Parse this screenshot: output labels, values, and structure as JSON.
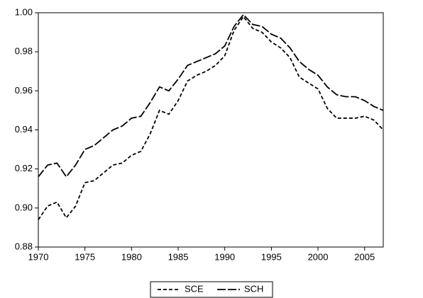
{
  "chart_data": {
    "type": "line",
    "x": [
      1970,
      1971,
      1972,
      1973,
      1974,
      1975,
      1976,
      1977,
      1978,
      1979,
      1980,
      1981,
      1982,
      1983,
      1984,
      1985,
      1986,
      1987,
      1988,
      1989,
      1990,
      1991,
      1992,
      1993,
      1994,
      1995,
      1996,
      1997,
      1998,
      1999,
      2000,
      2001,
      2002,
      2003,
      2004,
      2005,
      2006,
      2007
    ],
    "series": [
      {
        "name": "SCE",
        "color": "#000000",
        "dash": "short",
        "values": [
          0.894,
          0.901,
          0.903,
          0.895,
          0.901,
          0.913,
          0.914,
          0.918,
          0.922,
          0.923,
          0.927,
          0.929,
          0.938,
          0.95,
          0.948,
          0.955,
          0.965,
          0.968,
          0.97,
          0.973,
          0.978,
          0.991,
          0.998,
          0.992,
          0.99,
          0.985,
          0.982,
          0.977,
          0.967,
          0.964,
          0.961,
          0.951,
          0.946,
          0.946,
          0.946,
          0.947,
          0.945,
          0.94
        ]
      },
      {
        "name": "SCH",
        "color": "#000000",
        "dash": "long",
        "values": [
          0.916,
          0.922,
          0.923,
          0.916,
          0.922,
          0.93,
          0.932,
          0.936,
          0.94,
          0.942,
          0.946,
          0.947,
          0.954,
          0.962,
          0.96,
          0.966,
          0.973,
          0.975,
          0.977,
          0.979,
          0.983,
          0.993,
          0.999,
          0.994,
          0.993,
          0.989,
          0.987,
          0.982,
          0.975,
          0.971,
          0.968,
          0.962,
          0.958,
          0.957,
          0.957,
          0.955,
          0.952,
          0.95
        ]
      }
    ],
    "xlim": [
      1970,
      2007
    ],
    "xticks": [
      1970,
      1975,
      1980,
      1985,
      1990,
      1995,
      2000,
      2005
    ],
    "ylim": [
      0.88,
      1.0
    ],
    "yticks": [
      {
        "value": 0.88,
        "label": "0.88"
      },
      {
        "value": 0.9,
        "label": "0.90"
      },
      {
        "value": 0.92,
        "label": "0.92"
      },
      {
        "value": 0.94,
        "label": "0.94"
      },
      {
        "value": 0.96,
        "label": "0.96"
      },
      {
        "value": 0.98,
        "label": "0.98"
      },
      {
        "value": 1.0,
        "label": "1.00"
      }
    ],
    "legend": "bottom"
  }
}
